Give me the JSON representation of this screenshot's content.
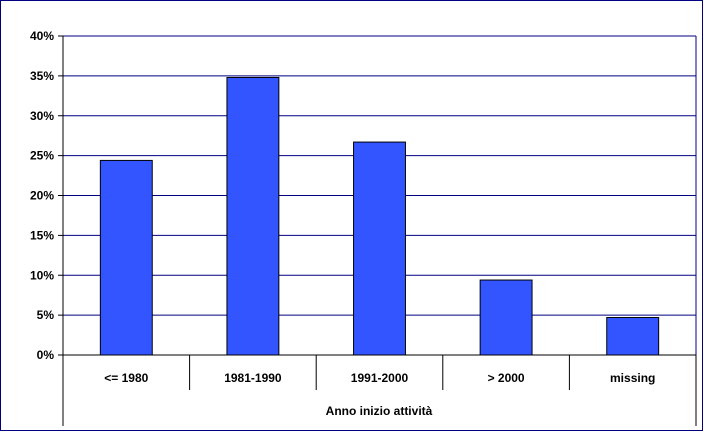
{
  "chart_data": {
    "type": "bar",
    "title": "",
    "xlabel": "Anno inizio attività",
    "ylabel": "",
    "categories": [
      "<= 1980",
      "1981-1990",
      "1991-2000",
      "> 2000",
      "missing"
    ],
    "values": [
      24.4,
      34.8,
      26.7,
      9.4,
      4.7
    ],
    "ylim": [
      0,
      40
    ],
    "yticks": [
      "0%",
      "5%",
      "10%",
      "15%",
      "20%",
      "25%",
      "30%",
      "35%",
      "40%"
    ],
    "grid": true,
    "legend": "none",
    "colors": {
      "bar_fill": "#3355ff",
      "bar_stroke": "#000000",
      "grid": "#000080",
      "frame": "#000080",
      "axis": "#000000"
    }
  }
}
